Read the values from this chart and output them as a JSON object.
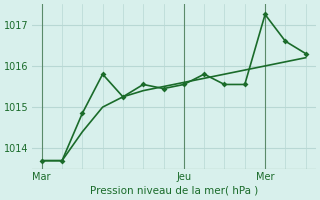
{
  "background_color": "#d8f0ec",
  "grid_color": "#b8d8d4",
  "line_color": "#1a6b2a",
  "line1_x": [
    0,
    1,
    2,
    3,
    4,
    5,
    6,
    7,
    8,
    9,
    10,
    11,
    12,
    13
  ],
  "line1_y": [
    1013.7,
    1013.7,
    1014.85,
    1015.8,
    1015.25,
    1015.55,
    1015.45,
    1015.55,
    1015.8,
    1015.55,
    1015.55,
    1017.25,
    1016.6,
    1016.3
  ],
  "line2_x": [
    0,
    1,
    2,
    3,
    4,
    5,
    6,
    7,
    8,
    9,
    10,
    11,
    12,
    13
  ],
  "line2_y": [
    1013.7,
    1013.7,
    1014.4,
    1015.0,
    1015.25,
    1015.4,
    1015.5,
    1015.6,
    1015.7,
    1015.8,
    1015.9,
    1016.0,
    1016.1,
    1016.2
  ],
  "ylim": [
    1013.5,
    1017.5
  ],
  "yticks": [
    1014,
    1015,
    1016,
    1017
  ],
  "xlabel": "Pression niveau de la mer( hPa )",
  "vlines_x": [
    0,
    7,
    11
  ],
  "vline_labels": [
    "Mar",
    "Jeu",
    "Mer"
  ],
  "marker": "D",
  "marker_size": 3
}
